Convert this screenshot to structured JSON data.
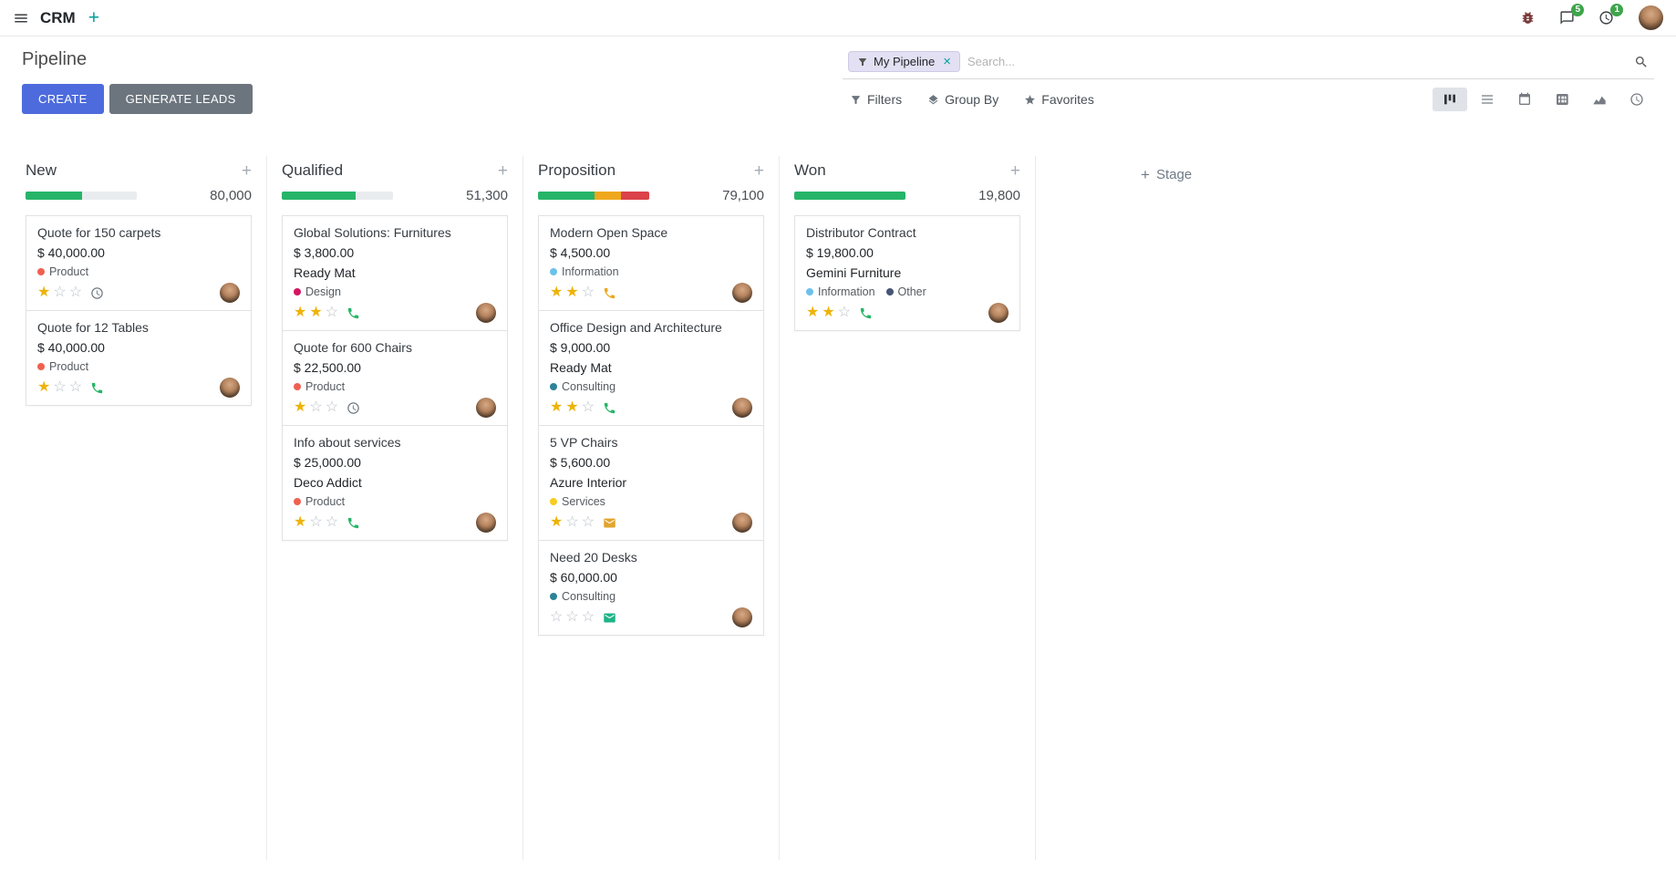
{
  "colors": {
    "primary": "#4d6bdd",
    "success": "#26b568",
    "warning": "#efa81e",
    "danger": "#db4249",
    "star": "#eeb308",
    "badge": "#3da54a"
  },
  "navbar": {
    "app_name": "CRM",
    "message_badge": "5",
    "activity_badge": "1"
  },
  "control_panel": {
    "title": "Pipeline",
    "create_label": "CREATE",
    "generate_label": "GENERATE LEADS",
    "filters_label": "Filters",
    "group_by_label": "Group By",
    "favorites_label": "Favorites",
    "search_facet": "My Pipeline",
    "search_placeholder": "Search..."
  },
  "kanban": {
    "add_stage_label": "Stage",
    "columns": [
      {
        "title": "New",
        "total": "80,000",
        "progress": [
          {
            "status": "success",
            "color": "#26b568",
            "pct": "51%"
          }
        ],
        "cards": [
          {
            "title": "Quote for 150 carpets",
            "amount": "$ 40,000.00",
            "company": "",
            "tags": [
              {
                "label": "Product",
                "color": "#f06050"
              }
            ],
            "stars": 1,
            "activity": {
              "type": "clock",
              "color": "#6c757d"
            }
          },
          {
            "title": "Quote for 12 Tables",
            "amount": "$ 40,000.00",
            "company": "",
            "tags": [
              {
                "label": "Product",
                "color": "#f06050"
              }
            ],
            "stars": 1,
            "activity": {
              "type": "phone",
              "color": "#26b568"
            }
          }
        ]
      },
      {
        "title": "Qualified",
        "total": "51,300",
        "progress": [
          {
            "status": "success",
            "color": "#26b568",
            "pct": "66%"
          }
        ],
        "cards": [
          {
            "title": "Global Solutions: Furnitures",
            "amount": "$ 3,800.00",
            "company": "Ready Mat",
            "tags": [
              {
                "label": "Design",
                "color": "#d6145f"
              }
            ],
            "stars": 2,
            "activity": {
              "type": "phone",
              "color": "#26b568"
            }
          },
          {
            "title": "Quote for 600 Chairs",
            "amount": "$ 22,500.00",
            "company": "",
            "tags": [
              {
                "label": "Product",
                "color": "#f06050"
              }
            ],
            "stars": 1,
            "activity": {
              "type": "clock",
              "color": "#6c757d"
            }
          },
          {
            "title": "Info about services",
            "amount": "$ 25,000.00",
            "company": "Deco Addict",
            "tags": [
              {
                "label": "Product",
                "color": "#f06050"
              }
            ],
            "stars": 1,
            "activity": {
              "type": "phone",
              "color": "#26b568"
            }
          }
        ]
      },
      {
        "title": "Proposition",
        "total": "79,100",
        "progress": [
          {
            "status": "success",
            "color": "#26b568",
            "pct": "51%"
          },
          {
            "status": "warning",
            "color": "#efa81e",
            "pct": "24%"
          },
          {
            "status": "danger",
            "color": "#db4249",
            "pct": "25%"
          }
        ],
        "cards": [
          {
            "title": "Modern Open Space",
            "amount": "$ 4,500.00",
            "company": "",
            "tags": [
              {
                "label": "Information",
                "color": "#6cc1ed"
              }
            ],
            "stars": 2,
            "activity": {
              "type": "phone",
              "color": "#efa81e"
            }
          },
          {
            "title": "Office Design and Architecture",
            "amount": "$ 9,000.00",
            "company": "Ready Mat",
            "tags": [
              {
                "label": "Consulting",
                "color": "#2c8397"
              }
            ],
            "stars": 2,
            "activity": {
              "type": "phone",
              "color": "#26b568"
            }
          },
          {
            "title": "5 VP Chairs",
            "amount": "$ 5,600.00",
            "company": "Azure Interior",
            "tags": [
              {
                "label": "Services",
                "color": "#f7cd1f"
              }
            ],
            "stars": 1,
            "activity": {
              "type": "envelope",
              "color": "#e2a52e"
            }
          },
          {
            "title": "Need 20 Desks",
            "amount": "$ 60,000.00",
            "company": "",
            "tags": [
              {
                "label": "Consulting",
                "color": "#2c8397"
              }
            ],
            "stars": 0,
            "activity": {
              "type": "envelope",
              "color": "#1eb488"
            }
          }
        ]
      },
      {
        "title": "Won",
        "total": "19,800",
        "progress": [
          {
            "status": "success",
            "color": "#26b568",
            "pct": "100%"
          }
        ],
        "cards": [
          {
            "title": "Distributor Contract",
            "amount": "$ 19,800.00",
            "company": "Gemini Furniture",
            "tags": [
              {
                "label": "Information",
                "color": "#6cc1ed"
              },
              {
                "label": "Other",
                "color": "#475577"
              }
            ],
            "stars": 2,
            "activity": {
              "type": "phone",
              "color": "#26b568"
            }
          }
        ]
      }
    ]
  }
}
